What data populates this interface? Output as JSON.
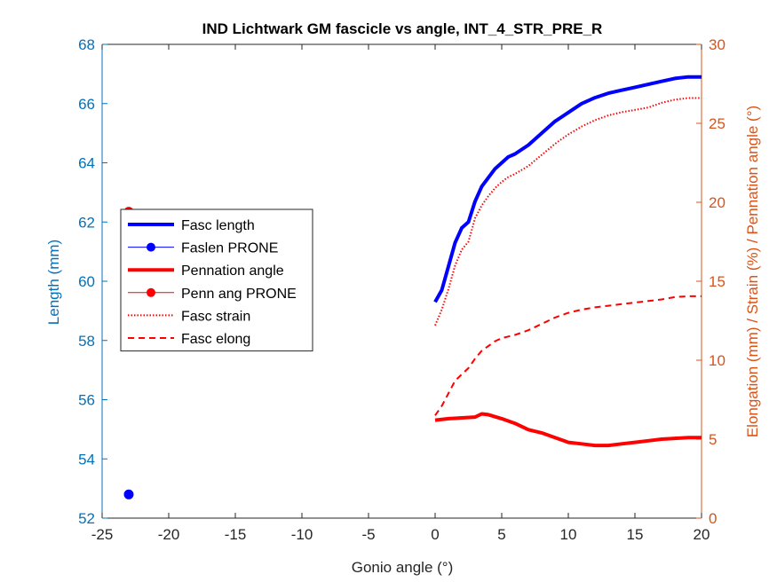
{
  "chart_data": {
    "type": "line",
    "title": "IND Lichtwark GM fascicle vs angle, INT_4_STR_PRE_R",
    "xlabel": "Gonio angle (°)",
    "ylabel_left": "Length (mm)",
    "ylabel_right": "Elongation (mm) / Strain (%) / Pennation angle (°)",
    "xlim": [
      -25,
      20
    ],
    "ylim_left": [
      52,
      68
    ],
    "ylim_right": [
      0,
      30
    ],
    "xticks": [
      "-25",
      "-20",
      "-15",
      "-10",
      "-5",
      "0",
      "5",
      "10",
      "15",
      "20"
    ],
    "yticks_left": [
      "52",
      "54",
      "56",
      "58",
      "60",
      "62",
      "64",
      "66",
      "68"
    ],
    "yticks_right": [
      "0",
      "5",
      "10",
      "15",
      "20",
      "25",
      "30"
    ],
    "grid": false,
    "legend_position": "middle-left",
    "colors": {
      "left_axis": "#0072BD",
      "right_axis": "#D95319",
      "blue": "#0000FF",
      "red": "#FF0000"
    },
    "series": [
      {
        "name": "Fasc length",
        "axis": "left",
        "style": "solid-thick",
        "color": "#0000FF",
        "x": [
          0,
          0.5,
          1,
          1.5,
          2,
          2.5,
          3,
          3.5,
          4,
          4.5,
          5,
          5.5,
          6,
          7,
          8,
          9,
          10,
          11,
          12,
          13,
          14,
          15,
          16,
          17,
          18,
          19,
          20
        ],
        "y": [
          59.3,
          59.7,
          60.5,
          61.3,
          61.8,
          62.0,
          62.7,
          63.2,
          63.5,
          63.8,
          64.0,
          64.2,
          64.3,
          64.6,
          65.0,
          65.4,
          65.7,
          66.0,
          66.2,
          66.35,
          66.45,
          66.55,
          66.65,
          66.75,
          66.85,
          66.9,
          66.9
        ]
      },
      {
        "name": "Faslen PRONE",
        "axis": "left",
        "style": "marker",
        "color": "#0000FF",
        "x": [
          -23
        ],
        "y": [
          52.8
        ]
      },
      {
        "name": "Pennation angle",
        "axis": "right",
        "style": "solid-thick",
        "color": "#FF0000",
        "x": [
          0,
          1,
          2,
          3,
          3.5,
          4,
          5,
          6,
          7,
          8,
          9,
          10,
          11,
          12,
          13,
          14,
          15,
          16,
          17,
          18,
          19,
          20
        ],
        "y": [
          6.2,
          6.3,
          6.35,
          6.4,
          6.6,
          6.55,
          6.3,
          6.0,
          5.6,
          5.4,
          5.1,
          4.8,
          4.7,
          4.6,
          4.6,
          4.7,
          4.8,
          4.9,
          5.0,
          5.05,
          5.1,
          5.1
        ]
      },
      {
        "name": "Penn ang PRONE",
        "axis": "right",
        "style": "marker",
        "color": "#FF0000",
        "x": [
          -23
        ],
        "y": [
          19.4
        ]
      },
      {
        "name": "Fasc strain",
        "axis": "right",
        "style": "dotted",
        "color": "#FF0000",
        "x": [
          0,
          0.5,
          1,
          1.5,
          2,
          2.5,
          3,
          3.5,
          4,
          4.5,
          5,
          5.5,
          6,
          7,
          8,
          9,
          10,
          11,
          12,
          13,
          14,
          15,
          16,
          17,
          18,
          19,
          20
        ],
        "y": [
          12.2,
          13.2,
          14.5,
          16.0,
          17.0,
          17.5,
          19.0,
          19.8,
          20.4,
          20.9,
          21.3,
          21.6,
          21.8,
          22.3,
          23.0,
          23.7,
          24.3,
          24.8,
          25.2,
          25.5,
          25.7,
          25.85,
          26.0,
          26.3,
          26.5,
          26.6,
          26.6
        ]
      },
      {
        "name": "Fasc elong",
        "axis": "right",
        "style": "dashed",
        "color": "#FF0000",
        "x": [
          0,
          0.5,
          1,
          1.5,
          2,
          2.5,
          3,
          3.5,
          4,
          4.5,
          5,
          5.5,
          6,
          7,
          8,
          9,
          10,
          11,
          12,
          13,
          14,
          15,
          16,
          17,
          18,
          19,
          20
        ],
        "y": [
          6.5,
          7.1,
          7.9,
          8.7,
          9.1,
          9.5,
          10.1,
          10.6,
          10.9,
          11.2,
          11.4,
          11.5,
          11.6,
          11.9,
          12.3,
          12.7,
          13.0,
          13.2,
          13.35,
          13.45,
          13.55,
          13.65,
          13.75,
          13.85,
          14.0,
          14.05,
          14.05
        ]
      }
    ]
  }
}
